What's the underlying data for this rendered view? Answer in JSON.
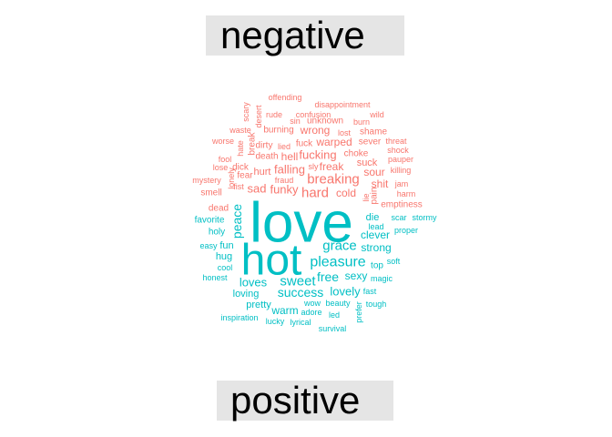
{
  "chart_data": {
    "type": "wordcloud",
    "groups": [
      {
        "name": "negative",
        "color": "#F8766D",
        "words": [
          "offending",
          "disappointment",
          "scary",
          "desert",
          "rude",
          "confusion",
          "wild",
          "sin",
          "unknown",
          "burn",
          "waste",
          "burning",
          "wrong",
          "lost",
          "shame",
          "worse",
          "break",
          "hate",
          "dirty",
          "lied",
          "fuck",
          "warped",
          "sever",
          "threat",
          "fool",
          "death",
          "hell",
          "fucking",
          "choke",
          "shock",
          "pauper",
          "lose",
          "dick",
          "sly",
          "freak",
          "suck",
          "lonely",
          "fear",
          "falling",
          "killing",
          "mystery",
          "hurt",
          "sour",
          "fist",
          "fraud",
          "breaking",
          "jam",
          "smell",
          "sad",
          "funky",
          "shit",
          "pain",
          "lie",
          "hard",
          "cold",
          "harm",
          "dead",
          "emptiness"
        ]
      },
      {
        "name": "positive",
        "color": "#00BFC4",
        "words": [
          "love",
          "hot",
          "peace",
          "scar",
          "stormy",
          "favorite",
          "die",
          "lead",
          "holy",
          "clever",
          "proper",
          "grace",
          "fun",
          "easy",
          "strong",
          "hug",
          "pleasure",
          "soft",
          "cool",
          "top",
          "free",
          "sexy",
          "honest",
          "sweet",
          "magic",
          "loves",
          "lovely",
          "fast",
          "loving",
          "success",
          "pretty",
          "tough",
          "warm",
          "beauty",
          "wow",
          "prefer",
          "adore",
          "led",
          "inspiration",
          "lucky",
          "lyrical",
          "survival"
        ]
      }
    ]
  }
}
